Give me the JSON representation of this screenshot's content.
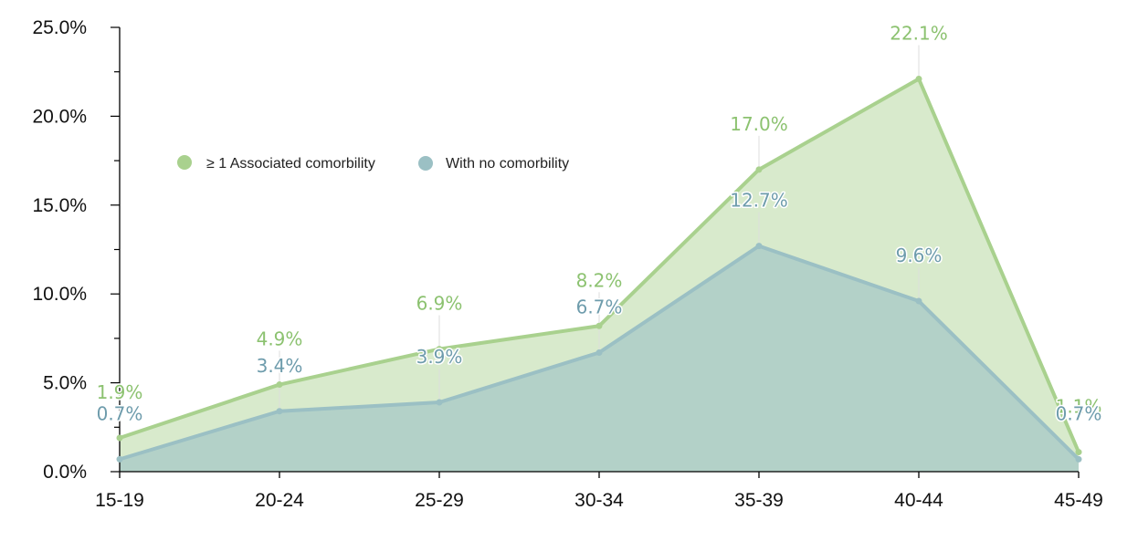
{
  "chart_data": {
    "type": "area",
    "categories": [
      "15-19",
      "20-24",
      "25-29",
      "30-34",
      "35-39",
      "40-44",
      "45-49"
    ],
    "series": [
      {
        "name": "≥ 1 Associated comorbility",
        "values": [
          1.9,
          4.9,
          6.9,
          8.2,
          17.0,
          22.1,
          1.1
        ],
        "labels": [
          "1.9%",
          "4.9%",
          "6.9%",
          "8.2%",
          "17.0%",
          "22.1%",
          "1.1%"
        ],
        "color": "#a9d18e",
        "label_color": "#8cc270"
      },
      {
        "name": "With no comorbility",
        "values": [
          0.7,
          3.4,
          3.9,
          6.7,
          12.7,
          9.6,
          0.7
        ],
        "labels": [
          "0.7%",
          "3.4%",
          "3.9%",
          "6.7%",
          "12.7%",
          "9.6%",
          "0.7%"
        ],
        "color": "#9bc0c4",
        "label_color": "#6e9cac"
      }
    ],
    "ylim": [
      0,
      25
    ],
    "y_ticks": [
      0,
      5,
      10,
      15,
      20,
      25
    ],
    "y_tick_labels": [
      "0.0%",
      "5.0%",
      "10.0%",
      "15.0%",
      "20.0%",
      "25.0%"
    ],
    "grid": false,
    "legend_position": "upper-left inside plot"
  }
}
